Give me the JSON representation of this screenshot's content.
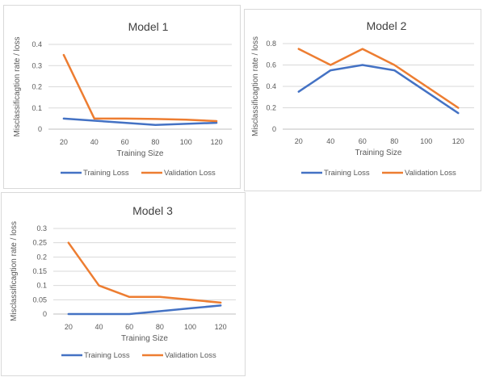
{
  "colors": {
    "training": "#4472C4",
    "validation": "#ED7D31",
    "grid": "#d9d9d9",
    "axis": "#bfbfbf"
  },
  "chart_data": [
    {
      "type": "line",
      "title": "Model 1",
      "xlabel": "Training Size",
      "ylabel": "Misclassificagtion rate / loss",
      "categories": [
        "20",
        "40",
        "60",
        "80",
        "100",
        "120"
      ],
      "yticks": [
        "0",
        "0.1",
        "0.2",
        "0.3",
        "0.4"
      ],
      "ylim": [
        0,
        0.4
      ],
      "grid": true,
      "legend": "bottom",
      "series": [
        {
          "name": "Training Loss",
          "values": [
            0.05,
            0.04,
            0.03,
            0.02,
            0.025,
            0.03
          ]
        },
        {
          "name": "Validation Loss",
          "values": [
            0.35,
            0.05,
            0.05,
            0.048,
            0.045,
            0.038
          ]
        }
      ]
    },
    {
      "type": "line",
      "title": "Model 2",
      "xlabel": "Training Size",
      "ylabel": "Misclassificagtion rate / loss",
      "categories": [
        "20",
        "40",
        "60",
        "80",
        "100",
        "120"
      ],
      "yticks": [
        "0",
        "0.2",
        "0.4",
        "0.6",
        "0.8"
      ],
      "ylim": [
        0,
        0.8
      ],
      "grid": true,
      "legend": "bottom",
      "series": [
        {
          "name": "Training Loss",
          "values": [
            0.35,
            0.55,
            0.6,
            0.55,
            0.35,
            0.15
          ]
        },
        {
          "name": "Validation Loss",
          "values": [
            0.75,
            0.6,
            0.75,
            0.6,
            0.4,
            0.2
          ]
        }
      ]
    },
    {
      "type": "line",
      "title": "Model 3",
      "xlabel": "Training Size",
      "ylabel": "Misclassificagtion rate / loss",
      "categories": [
        "20",
        "40",
        "60",
        "80",
        "100",
        "120"
      ],
      "yticks": [
        "0",
        "0.05",
        "0.1",
        "0.15",
        "0.2",
        "0.25",
        "0.3"
      ],
      "ylim": [
        0,
        0.3
      ],
      "grid": true,
      "legend": "bottom",
      "series": [
        {
          "name": "Training Loss",
          "values": [
            0,
            0,
            0,
            0.01,
            0.02,
            0.03
          ]
        },
        {
          "name": "Validation Loss",
          "values": [
            0.25,
            0.1,
            0.06,
            0.06,
            0.05,
            0.04
          ]
        }
      ]
    }
  ]
}
